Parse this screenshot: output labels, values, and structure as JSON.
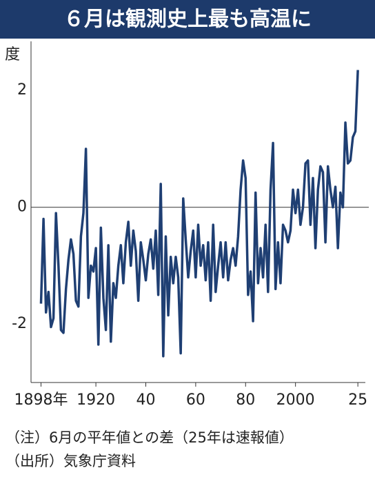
{
  "chart_data": {
    "type": "line",
    "title": "６月は観測史上最も高温に",
    "y_label": "度",
    "notes": [
      "（注）6月の平年値との差（25年は速報値）",
      "（出所）気象庁資料"
    ],
    "x": [
      1898,
      1899,
      1900,
      1901,
      1902,
      1903,
      1904,
      1905,
      1906,
      1907,
      1908,
      1909,
      1910,
      1911,
      1912,
      1913,
      1914,
      1915,
      1916,
      1917,
      1918,
      1919,
      1920,
      1921,
      1922,
      1923,
      1924,
      1925,
      1926,
      1927,
      1928,
      1929,
      1930,
      1931,
      1932,
      1933,
      1934,
      1935,
      1936,
      1937,
      1938,
      1939,
      1940,
      1941,
      1942,
      1943,
      1944,
      1945,
      1946,
      1947,
      1948,
      1949,
      1950,
      1951,
      1952,
      1953,
      1954,
      1955,
      1956,
      1957,
      1958,
      1959,
      1960,
      1961,
      1962,
      1963,
      1964,
      1965,
      1966,
      1967,
      1968,
      1969,
      1970,
      1971,
      1972,
      1973,
      1974,
      1975,
      1976,
      1977,
      1978,
      1979,
      1980,
      1981,
      1982,
      1983,
      1984,
      1985,
      1986,
      1987,
      1988,
      1989,
      1990,
      1991,
      1992,
      1993,
      1994,
      1995,
      1996,
      1997,
      1998,
      1999,
      2000,
      2001,
      2002,
      2003,
      2004,
      2005,
      2006,
      2007,
      2008,
      2009,
      2010,
      2011,
      2012,
      2013,
      2014,
      2015,
      2016,
      2017,
      2018,
      2019,
      2020,
      2021,
      2022,
      2023,
      2024,
      2025
    ],
    "series": [
      {
        "color": "#1f3f73",
        "values": [
          -1.65,
          -0.2,
          -1.8,
          -1.45,
          -2.05,
          -1.9,
          -0.1,
          -1.0,
          -2.1,
          -2.15,
          -1.4,
          -0.9,
          -0.55,
          -0.8,
          -1.6,
          -1.7,
          -0.5,
          -0.1,
          1.0,
          -1.55,
          -1.0,
          -1.1,
          -0.7,
          -2.35,
          -0.35,
          -1.55,
          -2.1,
          -0.65,
          -2.3,
          -1.3,
          -1.55,
          -1.0,
          -0.65,
          -1.3,
          -0.6,
          -0.25,
          -1.0,
          -0.4,
          -0.75,
          -1.6,
          -0.6,
          -0.9,
          -1.25,
          -0.8,
          -0.55,
          -1.05,
          -0.4,
          -1.5,
          0.4,
          -2.55,
          -0.5,
          -1.85,
          -0.85,
          -1.3,
          -0.85,
          -1.2,
          -2.5,
          0.15,
          -0.55,
          -1.2,
          -0.75,
          -0.4,
          -1.2,
          -0.3,
          -1.0,
          -0.65,
          -1.25,
          -0.6,
          -1.6,
          -0.3,
          -1.45,
          -1.0,
          -0.6,
          -1.2,
          -0.6,
          -1.25,
          -0.9,
          -0.7,
          -1.0,
          -0.5,
          0.3,
          0.8,
          0.5,
          -1.5,
          -1.1,
          -1.95,
          0.25,
          -1.3,
          -0.7,
          -1.2,
          -0.3,
          -1.45,
          0.3,
          1.1,
          -1.4,
          -0.6,
          -1.3,
          -0.3,
          -0.4,
          -0.6,
          -0.4,
          0.3,
          -0.1,
          0.3,
          -0.3,
          0.0,
          0.75,
          0.8,
          -0.3,
          0.5,
          -0.7,
          0.3,
          0.7,
          0.6,
          -0.6,
          0.7,
          0.3,
          0.0,
          0.35,
          -0.7,
          0.25,
          0.0,
          1.45,
          0.75,
          0.8,
          1.2,
          1.3,
          2.35
        ]
      }
    ],
    "xlim": [
      1894,
      2028
    ],
    "xticks": [
      {
        "value": 1898,
        "label": "1898年"
      },
      1920,
      {
        "value": 1940,
        "label": "40"
      },
      {
        "value": 1960,
        "label": "60"
      },
      {
        "value": 1980,
        "label": "80"
      },
      2000,
      {
        "value": 2025,
        "label": "25"
      }
    ],
    "ylim": [
      -3,
      2.84
    ],
    "yticks": [
      -2,
      0,
      2
    ],
    "zero_line": true
  }
}
